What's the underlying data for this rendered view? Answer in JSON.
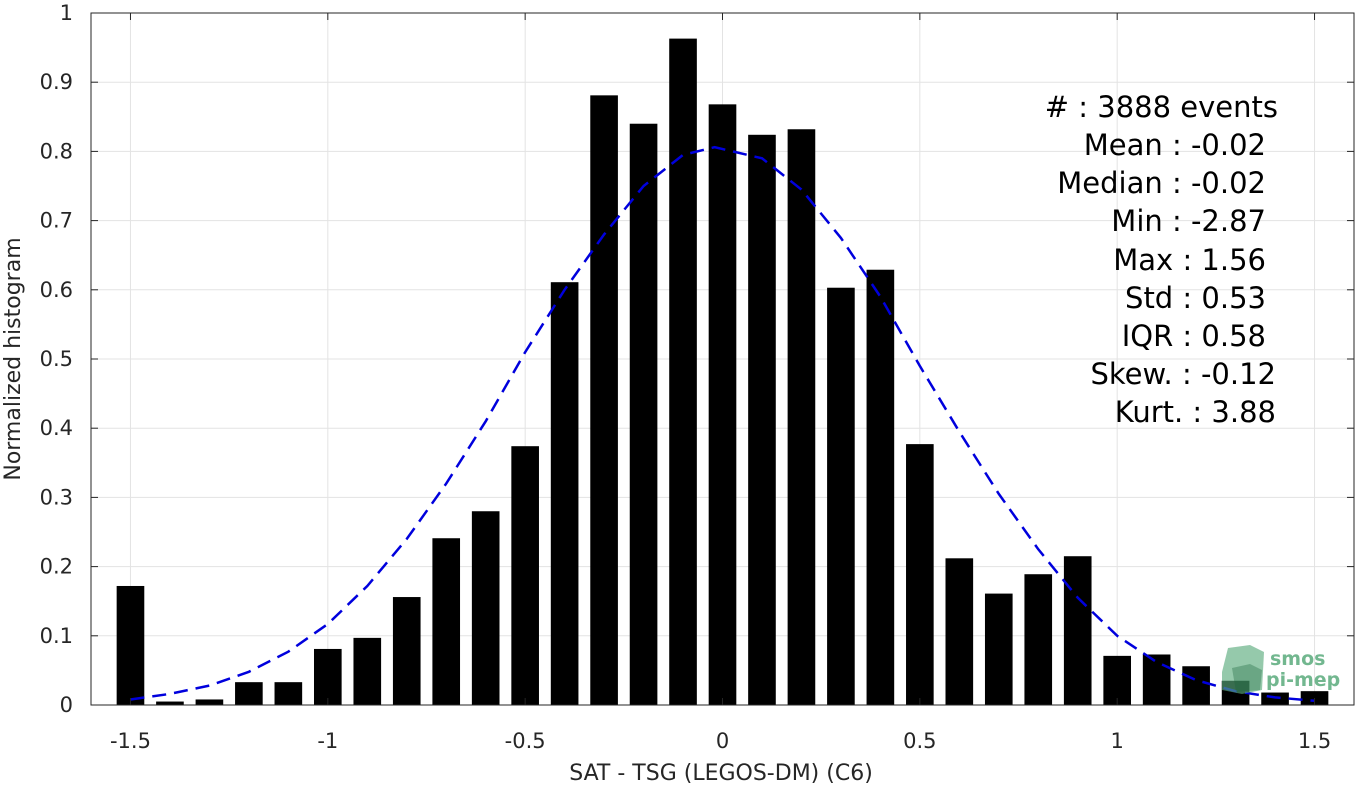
{
  "chart_data": {
    "type": "bar",
    "xlabel": "SAT - TSG (LEGOS-DM) (C6)",
    "ylabel": "Normalized histogram",
    "xlim": [
      -1.6,
      1.6
    ],
    "ylim": [
      0,
      1
    ],
    "grid": true,
    "x_ticks": [
      "-1.5",
      "-1",
      "-0.5",
      "0",
      "0.5",
      "1",
      "1.5"
    ],
    "x_tick_values": [
      -1.5,
      -1,
      -0.5,
      0,
      0.5,
      1,
      1.5
    ],
    "y_ticks": [
      "0",
      "0.1",
      "0.2",
      "0.3",
      "0.4",
      "0.5",
      "0.6",
      "0.7",
      "0.8",
      "0.9",
      "1"
    ],
    "y_tick_values": [
      0,
      0.1,
      0.2,
      0.3,
      0.4,
      0.5,
      0.6,
      0.7,
      0.8,
      0.9,
      1
    ],
    "bar_width": 0.07,
    "bar_color": "#000000",
    "bins": {
      "x": [
        -1.5,
        -1.4,
        -1.3,
        -1.2,
        -1.1,
        -1.0,
        -0.9,
        -0.8,
        -0.7,
        -0.6,
        -0.5,
        -0.4,
        -0.3,
        -0.2,
        -0.1,
        0.0,
        0.1,
        0.2,
        0.3,
        0.4,
        0.5,
        0.6,
        0.7,
        0.8,
        0.9,
        1.0,
        1.1,
        1.2,
        1.3,
        1.4,
        1.5
      ],
      "values": [
        0.172,
        0.005,
        0.008,
        0.033,
        0.033,
        0.081,
        0.097,
        0.156,
        0.241,
        0.28,
        0.374,
        0.611,
        0.881,
        0.84,
        0.963,
        0.868,
        0.824,
        0.832,
        0.603,
        0.629,
        0.377,
        0.212,
        0.161,
        0.189,
        0.215,
        0.071,
        0.073,
        0.056,
        0.035,
        0.018,
        0.02
      ]
    },
    "fit_curve": {
      "style": "dashed",
      "color": "#0000dd",
      "x": [
        -1.5,
        -1.4,
        -1.3,
        -1.2,
        -1.1,
        -1.0,
        -0.9,
        -0.8,
        -0.7,
        -0.6,
        -0.5,
        -0.4,
        -0.3,
        -0.2,
        -0.1,
        -0.02,
        0.1,
        0.2,
        0.3,
        0.4,
        0.5,
        0.6,
        0.7,
        0.8,
        0.9,
        1.0,
        1.1,
        1.2,
        1.3,
        1.4,
        1.5
      ],
      "y": [
        0.008,
        0.016,
        0.028,
        0.048,
        0.077,
        0.117,
        0.172,
        0.24,
        0.32,
        0.41,
        0.51,
        0.6,
        0.68,
        0.75,
        0.795,
        0.806,
        0.79,
        0.745,
        0.675,
        0.59,
        0.49,
        0.395,
        0.305,
        0.225,
        0.155,
        0.1,
        0.062,
        0.036,
        0.02,
        0.011,
        0.006
      ]
    },
    "annotations": [
      "#  : 3888 events",
      "Mean : -0.02",
      "Median : -0.02",
      "Min : -2.87",
      "Max : 1.56",
      "Std : 0.53",
      "IQR : 0.58",
      "Skew. : -0.12",
      "Kurt. : 3.88"
    ]
  },
  "logo": {
    "line1": "smos",
    "line2": "pi-mep",
    "color": "#5aab7c"
  }
}
